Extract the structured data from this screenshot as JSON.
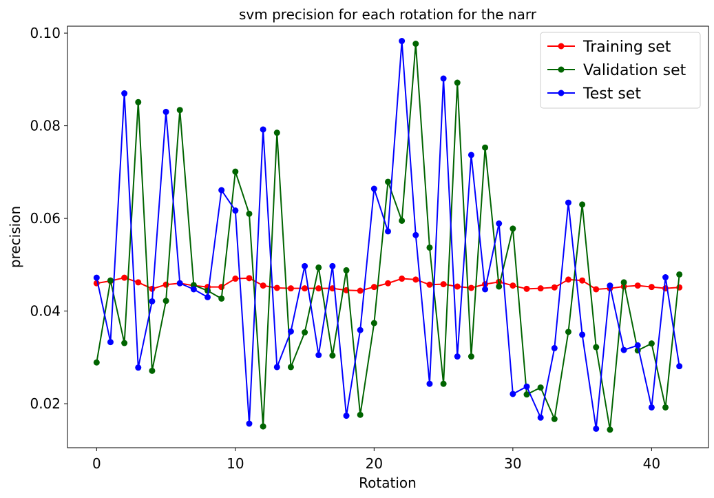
{
  "chart_data": {
    "type": "line",
    "title": "svm precision for each rotation for the narr",
    "xlabel": "Rotation",
    "ylabel": "precision",
    "xlim": [
      -2.1,
      44.1
    ],
    "ylim": [
      0.0105,
      0.1015
    ],
    "xticks": [
      0,
      10,
      20,
      30,
      40
    ],
    "xtick_labels": [
      "0",
      "10",
      "20",
      "30",
      "40"
    ],
    "yticks": [
      0.02,
      0.04,
      0.06,
      0.08,
      0.1
    ],
    "ytick_labels": [
      "0.02",
      "0.04",
      "0.06",
      "0.08",
      "0.10"
    ],
    "grid": false,
    "legend_position": "top-right",
    "x": [
      0,
      1,
      2,
      3,
      4,
      5,
      6,
      7,
      8,
      9,
      10,
      11,
      12,
      13,
      14,
      15,
      16,
      17,
      18,
      19,
      20,
      21,
      22,
      23,
      24,
      25,
      26,
      27,
      28,
      29,
      30,
      31,
      32,
      33,
      34,
      35,
      36,
      37,
      38,
      39,
      40,
      41,
      42
    ],
    "series": [
      {
        "name": "Training set",
        "color": "#ff0000",
        "values": [
          0.046,
          0.0465,
          0.0472,
          0.0462,
          0.0448,
          0.0457,
          0.046,
          0.0455,
          0.0452,
          0.0452,
          0.047,
          0.0471,
          0.0455,
          0.045,
          0.0449,
          0.0449,
          0.0449,
          0.0449,
          0.0445,
          0.0444,
          0.0452,
          0.046,
          0.047,
          0.0468,
          0.0457,
          0.0458,
          0.0453,
          0.045,
          0.0458,
          0.0463,
          0.0455,
          0.0448,
          0.0449,
          0.0451,
          0.0468,
          0.0466,
          0.0447,
          0.0449,
          0.0453,
          0.0455,
          0.0452,
          0.0449,
          0.0451
        ]
      },
      {
        "name": "Validation set",
        "color": "#006400",
        "values": [
          0.0289,
          0.0466,
          0.0331,
          0.0851,
          0.0271,
          0.0422,
          0.0834,
          0.0456,
          0.0444,
          0.0427,
          0.0701,
          0.061,
          0.0151,
          0.0785,
          0.0279,
          0.0354,
          0.0494,
          0.0304,
          0.0488,
          0.0176,
          0.0374,
          0.0679,
          0.0595,
          0.0977,
          0.0537,
          0.0243,
          0.0893,
          0.0302,
          0.0753,
          0.0453,
          0.0578,
          0.022,
          0.0235,
          0.0167,
          0.0355,
          0.063,
          0.0322,
          0.0144,
          0.0462,
          0.0315,
          0.033,
          0.0192,
          0.0479
        ]
      },
      {
        "name": "Test set",
        "color": "#0000ff",
        "values": [
          0.0472,
          0.0333,
          0.087,
          0.0278,
          0.0421,
          0.083,
          0.046,
          0.0447,
          0.043,
          0.0661,
          0.0617,
          0.0157,
          0.0792,
          0.0279,
          0.0356,
          0.0497,
          0.0305,
          0.0497,
          0.0174,
          0.0359,
          0.0664,
          0.0572,
          0.0983,
          0.0564,
          0.0243,
          0.0902,
          0.0302,
          0.0737,
          0.0447,
          0.0589,
          0.0221,
          0.0237,
          0.017,
          0.032,
          0.0634,
          0.0349,
          0.0146,
          0.0455,
          0.0316,
          0.0326,
          0.0192,
          0.0473,
          0.0281
        ]
      }
    ]
  }
}
